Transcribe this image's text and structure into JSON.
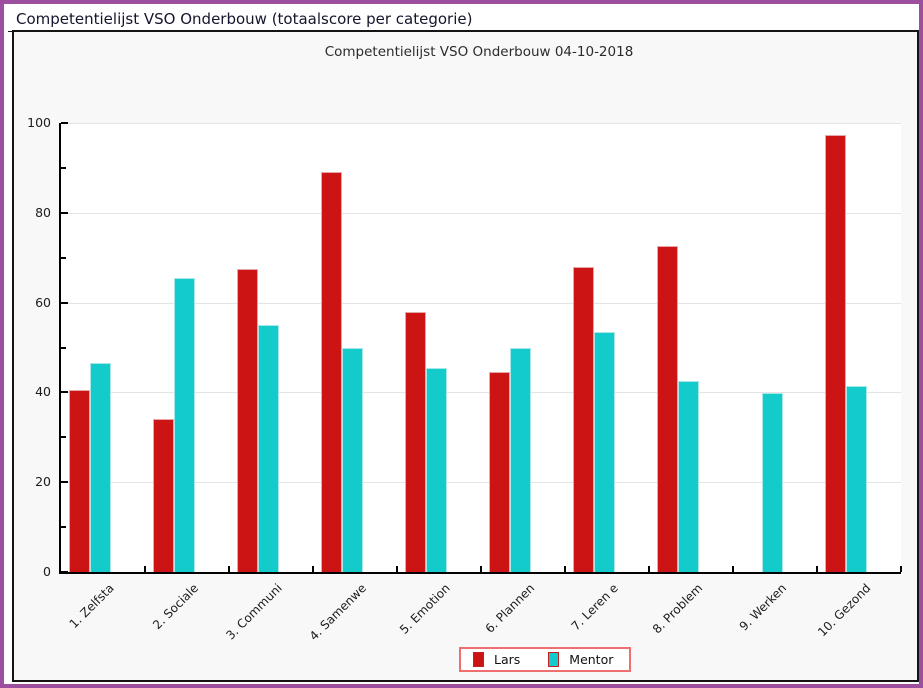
{
  "page": {
    "title": "Competentielijst VSO Onderbouw (totaalscore per categorie)"
  },
  "colors": {
    "window_border": "#9c4f9f",
    "frame_border": "#141414",
    "frame_background": "#f8f8f8",
    "plot_background": "#ffffff",
    "gridline": "#e4e4e4",
    "legend_border": "#ef6f6f",
    "lars_red": "#cc1414",
    "mentor_cyan": "#14cbcb"
  },
  "chart_data": {
    "type": "bar",
    "title": "Competentielijst VSO Onderbouw 04-10-2018",
    "categories": [
      "1. Zelfsta",
      "2. Sociale",
      "3. Communi",
      "4. Samenwe",
      "5. Emotion",
      "6. Plannen",
      "7. Leren e",
      "8. Problem",
      "9. Werken",
      "10. Gezond"
    ],
    "series": [
      {
        "name": "Lars",
        "color": "#cc1414",
        "edge": "#e8a8a8",
        "values": [
          40.5,
          34,
          67.5,
          89,
          58,
          44.5,
          68,
          72.5,
          0,
          97.3
        ]
      },
      {
        "name": "Mentor",
        "color": "#14cbcb",
        "edge": "#a8e8e8",
        "values": [
          46.5,
          65.5,
          55,
          50,
          45.5,
          50,
          53.5,
          42.5,
          39.8,
          41.5
        ]
      }
    ],
    "ylim": [
      0,
      100
    ],
    "yticks": [
      0,
      20,
      40,
      60,
      80,
      100
    ],
    "minor_yticks": [
      10,
      30,
      50,
      70,
      90
    ],
    "grid": true,
    "legend_position": "bottom"
  }
}
